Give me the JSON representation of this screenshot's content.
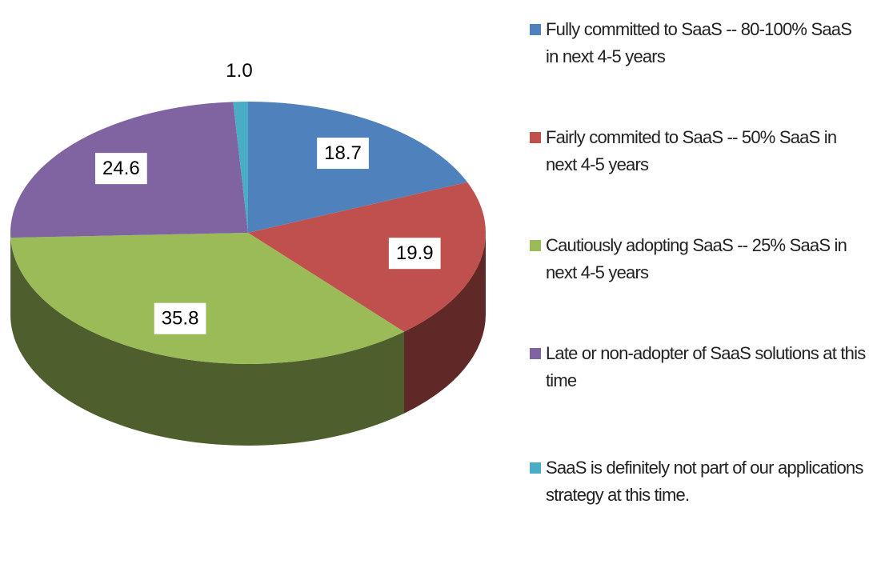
{
  "chart_data": {
    "type": "pie",
    "categories": [
      "Fully committed to SaaS -- 80-100% SaaS in next 4-5 years",
      "Fairly commited to SaaS -- 50% SaaS in next 4-5 years",
      "Cautiously adopting SaaS -- 25% SaaS in next 4-5 years",
      "Late or non-adopter of SaaS solutions at this time",
      "SaaS is definitely not part of our applications strategy at this time."
    ],
    "values": [
      18.7,
      19.9,
      35.8,
      24.6,
      1.0
    ],
    "value_labels": [
      "18.7",
      "19.9",
      "35.8",
      "24.6",
      "1.0"
    ],
    "colors": [
      "#4f81bd",
      "#c0504d",
      "#9bbb59",
      "#8064a2",
      "#4bacc6"
    ],
    "legend": "right"
  }
}
